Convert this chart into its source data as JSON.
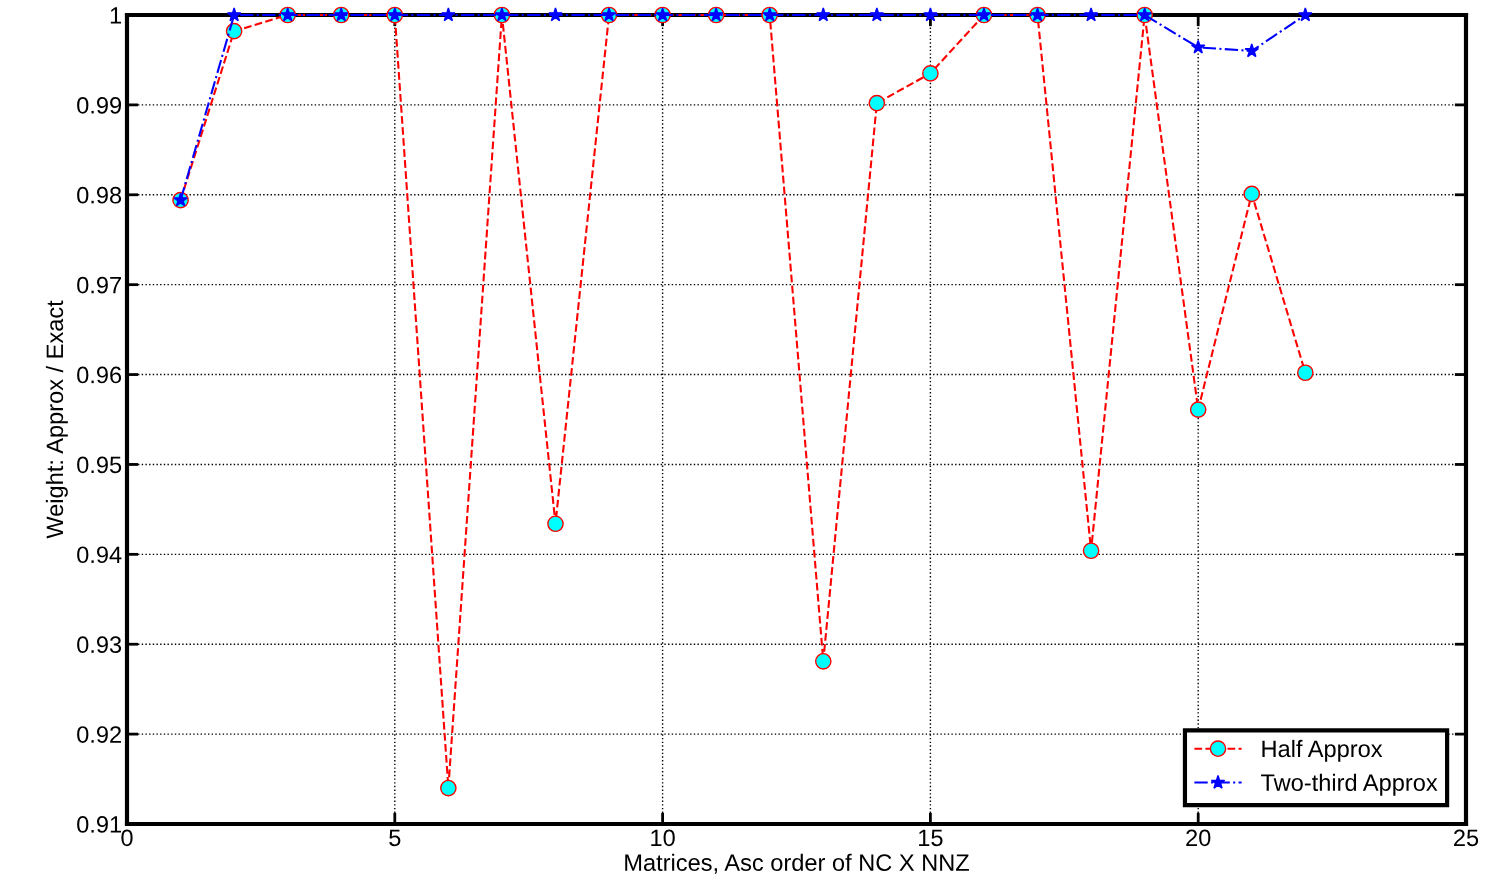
{
  "chart_data": {
    "type": "line",
    "xlabel": "Matrices, Asc order of NC X NNZ",
    "ylabel": "Weight: Approx / Exact",
    "x": [
      1,
      2,
      3,
      4,
      5,
      6,
      7,
      8,
      9,
      10,
      11,
      12,
      13,
      14,
      15,
      16,
      17,
      18,
      19,
      20,
      21,
      22
    ],
    "series": [
      {
        "name": "Half Approx",
        "color": "#ff0000",
        "marker": "circle",
        "line_style": "dashed",
        "values": [
          0.9794,
          0.9982,
          1,
          1,
          1,
          0.914,
          1,
          0.9434,
          1,
          1,
          1,
          1,
          0.9281,
          0.9902,
          0.9935,
          1,
          1,
          0.9404,
          1,
          0.9561,
          0.9801,
          0.9602
        ]
      },
      {
        "name": "Two-third Approx",
        "color": "#0000ff",
        "marker": "star",
        "line_style": "dashdot",
        "values": [
          0.9794,
          1,
          1,
          1,
          1,
          1,
          1,
          1,
          1,
          1,
          1,
          1,
          1,
          1,
          1,
          1,
          1,
          1,
          1,
          0.9964,
          0.996,
          1
        ]
      }
    ],
    "xlim": [
      0,
      25
    ],
    "xticks": [
      0,
      5,
      10,
      15,
      20,
      25
    ],
    "ylim": [
      0.91,
      1
    ],
    "yticks": [
      0.91,
      0.92,
      0.93,
      0.94,
      0.95,
      0.96,
      0.97,
      0.98,
      0.99,
      1
    ],
    "grid": true,
    "legend": "bottom right"
  }
}
